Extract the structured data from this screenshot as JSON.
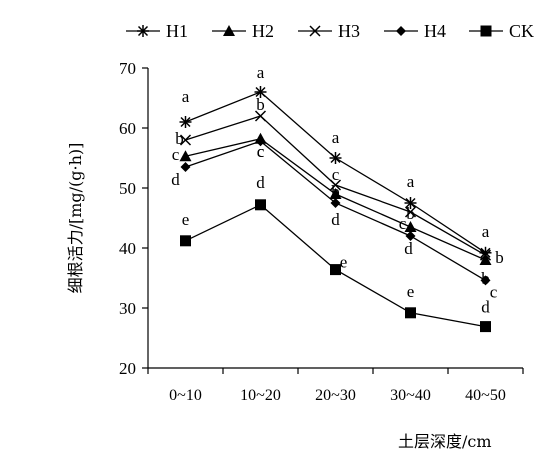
{
  "chart_data": {
    "type": "line",
    "title": "",
    "xlabel": "土层深度/cm",
    "ylabel": "细根活力/[mg/(g·h)]",
    "ylim": [
      20,
      70
    ],
    "yticks": [
      20,
      30,
      40,
      50,
      60,
      70
    ],
    "categories": [
      "0~10",
      "10~20",
      "20~30",
      "30~40",
      "40~50"
    ],
    "grid": false,
    "legend_position": "top",
    "series": [
      {
        "name": "H1",
        "marker": "asterisk",
        "values": [
          61,
          66,
          55,
          47.5,
          39.2
        ],
        "labels": [
          "a",
          "a",
          "a",
          "a",
          "a"
        ]
      },
      {
        "name": "H2",
        "marker": "triangle",
        "values": [
          55.3,
          58.2,
          49,
          43.5,
          38
        ],
        "labels": [
          "c",
          "c",
          "c",
          "c",
          "b"
        ]
      },
      {
        "name": "H3",
        "marker": "x",
        "values": [
          58,
          62,
          50.5,
          46,
          38.8
        ],
        "labels": [
          "b",
          "b",
          "b",
          "b",
          "b"
        ]
      },
      {
        "name": "H4",
        "marker": "diamond",
        "values": [
          53.5,
          57.8,
          47.5,
          42,
          34.6
        ],
        "labels": [
          "d",
          "c",
          "d",
          "d",
          "c"
        ]
      },
      {
        "name": "CK",
        "marker": "square",
        "values": [
          41.2,
          47.2,
          36.4,
          29.2,
          26.9
        ],
        "labels": [
          "e",
          "d",
          "e",
          "e",
          "d"
        ]
      }
    ]
  }
}
